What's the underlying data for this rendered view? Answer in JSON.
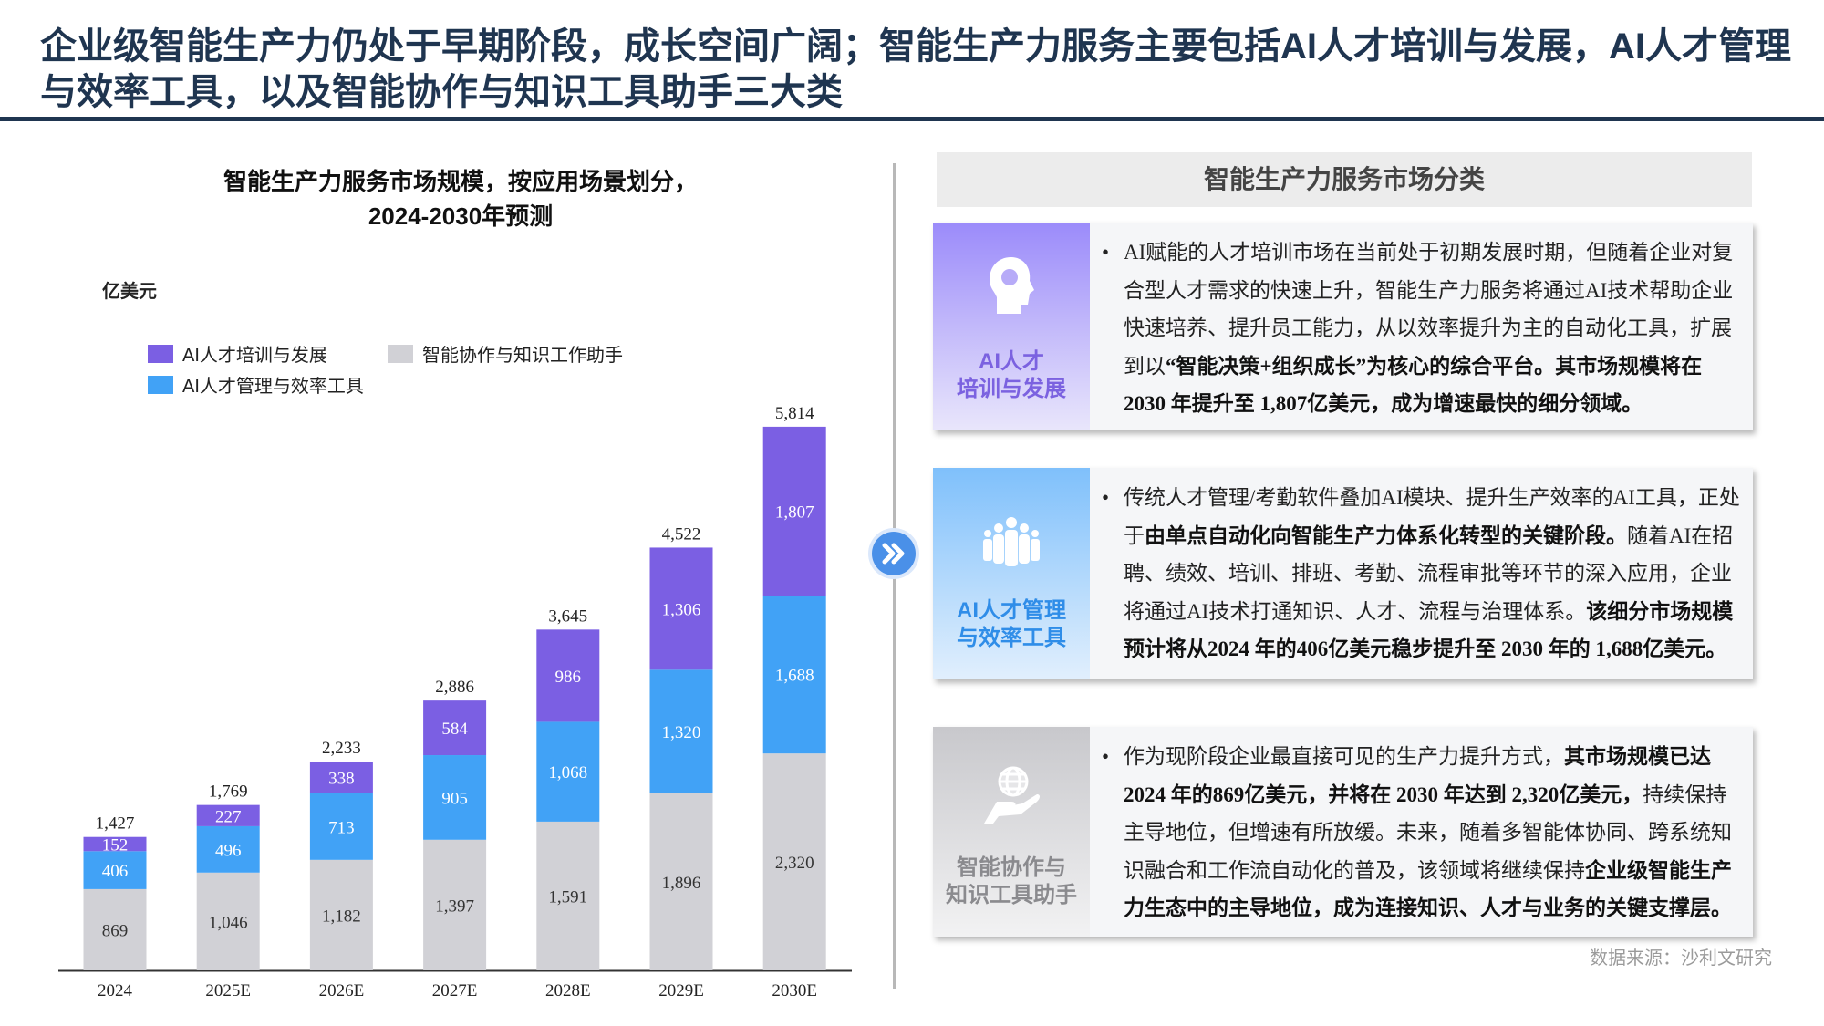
{
  "title": "企业级智能生产力仍处于早期阶段，成长空间广阔；智能生产力服务主要包括AI人才培训与发展，AI人才管理与效率工具，以及智能协作与知识工具助手三大类",
  "chart_data": {
    "type": "bar",
    "stacked": true,
    "title_line1": "智能生产力服务市场规模，按应用场景划分，",
    "title_line2": "2024-2030年预测",
    "ylabel": "亿美元",
    "legend_placement": "top-left",
    "categories": [
      "2024",
      "2025E",
      "2026E",
      "2027E",
      "2028E",
      "2029E",
      "2030E"
    ],
    "series": [
      {
        "name": "智能协作与知识工作助手",
        "color": "#d1d1d6",
        "values": [
          869,
          1046,
          1182,
          1397,
          1591,
          1896,
          2320
        ]
      },
      {
        "name": "AI人才管理与效率工具",
        "color": "#41a2f6",
        "values": [
          406,
          496,
          713,
          905,
          1068,
          1320,
          1688
        ]
      },
      {
        "name": "AI人才培训与发展",
        "color": "#7b5fe3",
        "values": [
          152,
          227,
          338,
          584,
          986,
          1306,
          1807
        ]
      }
    ],
    "totals": [
      "1,427",
      "1,769",
      "2,233",
      "2,886",
      "3,645",
      "4,522",
      "5,814"
    ],
    "grid": false
  },
  "legend": {
    "training": "AI人才培训与发展",
    "collab": "智能协作与知识工作助手",
    "mgmt": "AI人才管理与效率工具"
  },
  "right": {
    "header": "智能生产力服务市场分类",
    "cards": [
      {
        "label1": "AI人才",
        "label2": "培训与发展",
        "icon": "head-lightbulb-icon",
        "segs": [
          "AI赋能的人才培训市场在当前处于初期发展时期，但随着企业对复合型人才需求的快速上升，智能生产力服务将通过AI技术帮助企业快速培养、提升员工能力，从以效率提升为主的自动化工具，扩展到以",
          "“智能决策+组织成长”为核心的综合平台。其市场规模将在2030 年提升至 1,807亿美元，成为增速最快的细分领域。"
        ]
      },
      {
        "label1": "AI人才管理",
        "label2": "与效率工具",
        "icon": "people-group-icon",
        "segs": [
          "传统人才管理/考勤软件叠加AI模块、提升生产效率的AI工具，正处于",
          "由单点自动化向智能生产力体系化转型的关键阶段。",
          "随着AI在招聘、绩效、培训、排班、考勤、流程审批等环节的深入应用，企业将通过AI技术打通知识、人才、流程与治理体系。",
          "该细分市场规模预计将从2024 年的406亿美元稳步提升至 2030 年的 1,688亿美元。"
        ]
      },
      {
        "label1": "智能协作与",
        "label2": "知识工具助手",
        "icon": "globe-hand-icon",
        "segs": [
          "作为现阶段企业最直接可见的生产力提升方式，",
          "其市场规模已达2024 年的869亿美元，并将在 2030 年达到 2,320亿美元，",
          "持续保持主导地位，但增速有所放缓。未来，随着多智能体协同、跨系统知识融合和工作流自动化的普及，该领域将继续保持",
          "企业级智能生产力生态中的主导地位，成为连接知识、人才与业务的关键支撑层。"
        ]
      }
    ],
    "bullet": "•"
  },
  "source": "数据来源：沙利文研究"
}
